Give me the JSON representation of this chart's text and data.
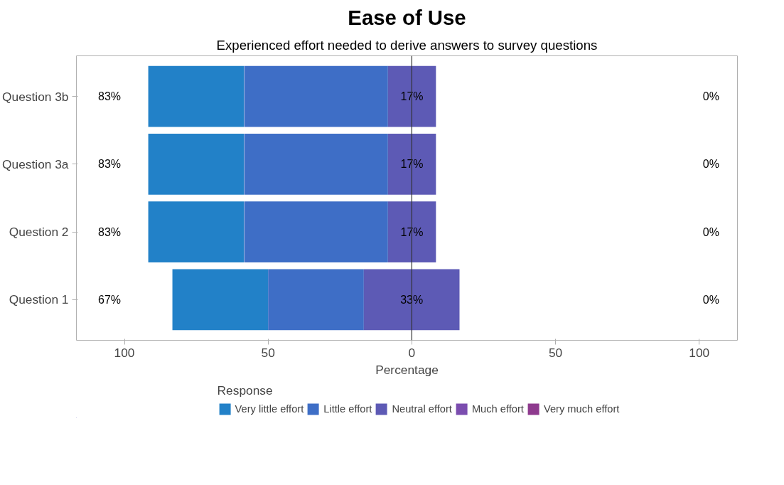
{
  "chart_data": {
    "type": "bar",
    "orientation": "horizontal",
    "title": "Ease of Use",
    "subtitle": "Experienced effort needed to derive answers to survey questions",
    "xlabel": "Percentage",
    "legend_title": "Response",
    "legend": "bottom",
    "grid": false,
    "categories": [
      "Question 3b",
      "Question 3a",
      "Question 2",
      "Question 1"
    ],
    "series": [
      {
        "name": "Very little effort",
        "color": "#2281c8",
        "base": [
          -91.7,
          -91.7,
          -91.7,
          -83.3
        ],
        "values": [
          33.3,
          33.3,
          33.3,
          33.3
        ]
      },
      {
        "name": "Little effort",
        "color": "#3e6ec6",
        "base": [
          -58.3,
          -58.3,
          -58.3,
          -50
        ],
        "values": [
          50,
          50,
          50,
          33.3
        ]
      },
      {
        "name": "Neutral effort",
        "color": "#5d5ab5",
        "base": [
          -8.3,
          -8.3,
          -8.3,
          -16.7
        ],
        "values": [
          16.7,
          16.7,
          16.7,
          33.3
        ],
        "value_labels": [
          "17%",
          "17%",
          "17%",
          "33%"
        ]
      },
      {
        "name": "Much effort",
        "color": "#7b4daf",
        "values": [
          0,
          0,
          0,
          0
        ]
      },
      {
        "name": "Very much effort",
        "color": "#8e3a8e",
        "values": [
          0,
          0,
          0,
          0
        ]
      }
    ],
    "xlim": [
      -116.7,
      113.3
    ],
    "xticks": [
      {
        "value": -100,
        "label": "100"
      },
      {
        "value": -50,
        "label": "50"
      },
      0,
      50,
      {
        "value": 100,
        "label": "100"
      }
    ],
    "ref_lines": [
      {
        "axis": "x",
        "value": 0,
        "color": "#333333"
      }
    ],
    "annotations": [
      "83%",
      "0%",
      "83%",
      "0%",
      "83%",
      "0%",
      "67%",
      "0%"
    ]
  }
}
